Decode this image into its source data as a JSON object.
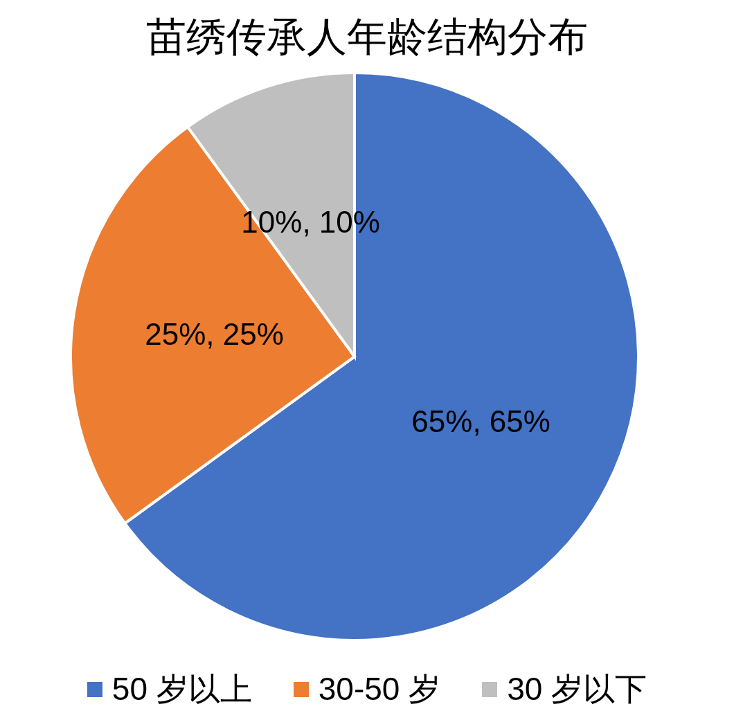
{
  "chart_data": {
    "type": "pie",
    "title": "苗绣传承人年龄结构分布",
    "categories": [
      "50 岁以上",
      "30-50 岁",
      "30 岁以下"
    ],
    "values": [
      65,
      25,
      10
    ],
    "colors": [
      "#4472c4",
      "#ed7d31",
      "#bfbfbf"
    ],
    "value_labels": [
      "65%, 65%",
      "25%, 25%",
      "10%, 10%"
    ],
    "legend": "bottom"
  }
}
